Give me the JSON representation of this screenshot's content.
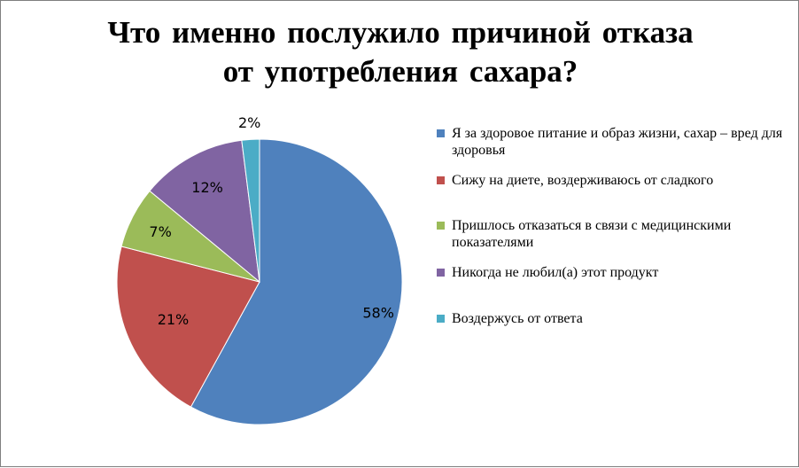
{
  "chart_data": {
    "type": "pie",
    "title_lines": [
      "Что именно послужило причиной отказа",
      "от употребления сахара?"
    ],
    "legend_position": "right",
    "slices": [
      {
        "label": "Я за здоровое питание и образ жизни, сахар – вред для здоровья",
        "value": 58,
        "display": "58%",
        "color": "#4f81bd"
      },
      {
        "label": "Сижу на диете, воздерживаюсь от сладкого",
        "value": 21,
        "display": "21%",
        "color": "#c0504d"
      },
      {
        "label": "Пришлось отказаться в связи с медицинскими показателями",
        "value": 7,
        "display": "7%",
        "color": "#9bbb59"
      },
      {
        "label": "Никогда не любил(а) этот продукт",
        "value": 12,
        "display": "12%",
        "color": "#8064a2"
      },
      {
        "label": "Воздержусь от ответа",
        "value": 2,
        "display": "2%",
        "color": "#4bacc6"
      }
    ]
  }
}
